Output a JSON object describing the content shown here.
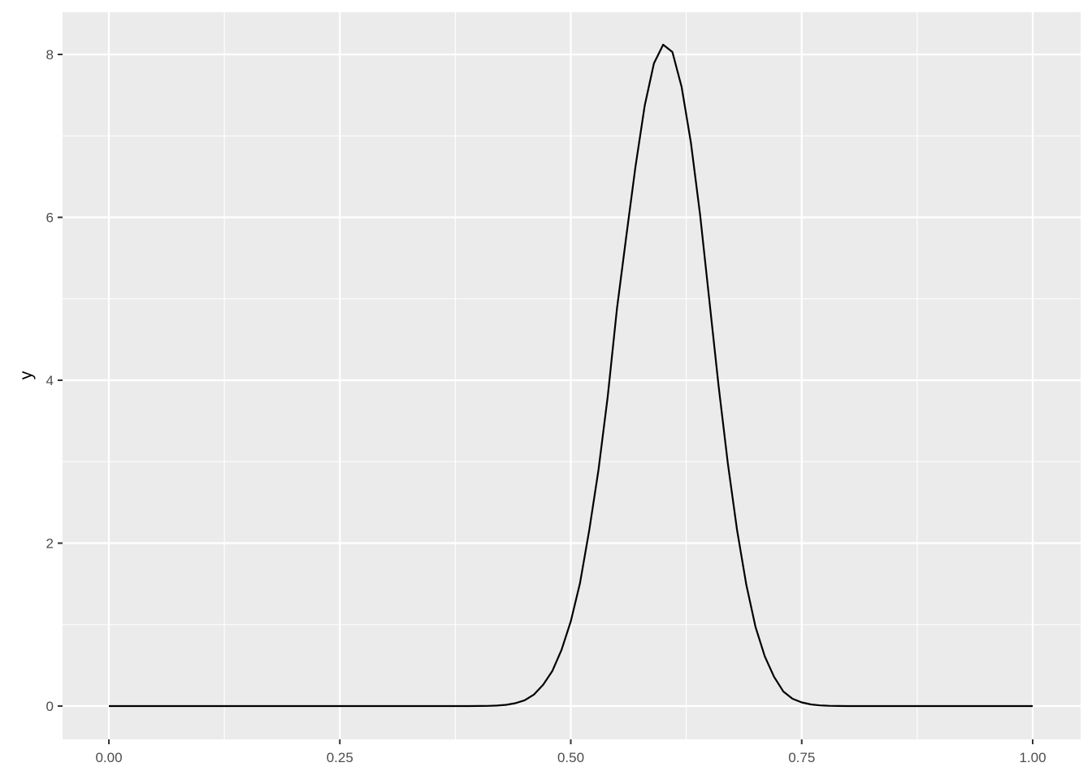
{
  "chart_data": {
    "type": "line",
    "title": "",
    "xlabel": "",
    "ylabel": "y",
    "xlim": [
      0,
      1
    ],
    "ylim": [
      0,
      8.12
    ],
    "x_ticks": [
      0,
      0.25,
      0.5,
      0.75,
      1
    ],
    "x_tick_labels": [
      "0.00",
      "0.25",
      "0.50",
      "0.75",
      "1.00"
    ],
    "y_ticks": [
      0,
      2,
      4,
      6,
      8
    ],
    "y_tick_labels": [
      "0",
      "2",
      "4",
      "6",
      "8"
    ],
    "grid": true,
    "colors": {
      "panel": "#EBEBEB",
      "grid": "#FFFFFF",
      "line": "#000000"
    },
    "x": [
      0,
      0.01,
      0.02,
      0.03,
      0.04,
      0.05,
      0.06,
      0.07,
      0.08,
      0.09,
      0.1,
      0.11,
      0.12,
      0.13,
      0.14,
      0.15,
      0.16,
      0.17,
      0.18,
      0.19,
      0.2,
      0.21,
      0.22,
      0.23,
      0.24,
      0.25,
      0.26,
      0.27,
      0.28,
      0.29,
      0.3,
      0.31,
      0.32,
      0.33,
      0.34,
      0.35,
      0.36,
      0.37,
      0.38,
      0.39,
      0.4,
      0.41,
      0.42,
      0.43,
      0.44,
      0.45,
      0.46,
      0.47,
      0.48,
      0.49,
      0.5,
      0.51,
      0.52,
      0.53,
      0.54,
      0.55,
      0.56,
      0.57,
      0.58,
      0.59,
      0.6,
      0.61,
      0.62,
      0.63,
      0.64,
      0.65,
      0.66,
      0.67,
      0.68,
      0.69,
      0.7,
      0.71,
      0.72,
      0.73,
      0.74,
      0.75,
      0.76,
      0.77,
      0.78,
      0.79,
      0.8,
      0.81,
      0.82,
      0.83,
      0.84,
      0.85,
      0.86,
      0.87,
      0.88,
      0.89,
      0.9,
      0.91,
      0.92,
      0.93,
      0.94,
      0.95,
      0.96,
      0.97,
      0.98,
      0.99,
      1
    ],
    "y": [
      0,
      0,
      0,
      0,
      0,
      0,
      0,
      0,
      0,
      0,
      0,
      0,
      0,
      0,
      0,
      0,
      0,
      0,
      0,
      0,
      0,
      0,
      0,
      0,
      0,
      0,
      0,
      0,
      0,
      0,
      0,
      0,
      0,
      0,
      0,
      0,
      0,
      0,
      0,
      0,
      0.001,
      0.002,
      0.006,
      0.015,
      0.035,
      0.07,
      0.14,
      0.26,
      0.43,
      0.69,
      1.04,
      1.51,
      2.16,
      2.9,
      3.8,
      4.88,
      5.76,
      6.62,
      7.37,
      7.89,
      8.12,
      8.03,
      7.6,
      6.92,
      6.03,
      4.98,
      3.93,
      2.98,
      2.16,
      1.49,
      0.97,
      0.61,
      0.36,
      0.18,
      0.09,
      0.045,
      0.02,
      0.008,
      0.003,
      0.001,
      0,
      0,
      0,
      0,
      0,
      0,
      0,
      0,
      0,
      0,
      0,
      0,
      0,
      0,
      0,
      0,
      0,
      0,
      0,
      0,
      0
    ]
  }
}
